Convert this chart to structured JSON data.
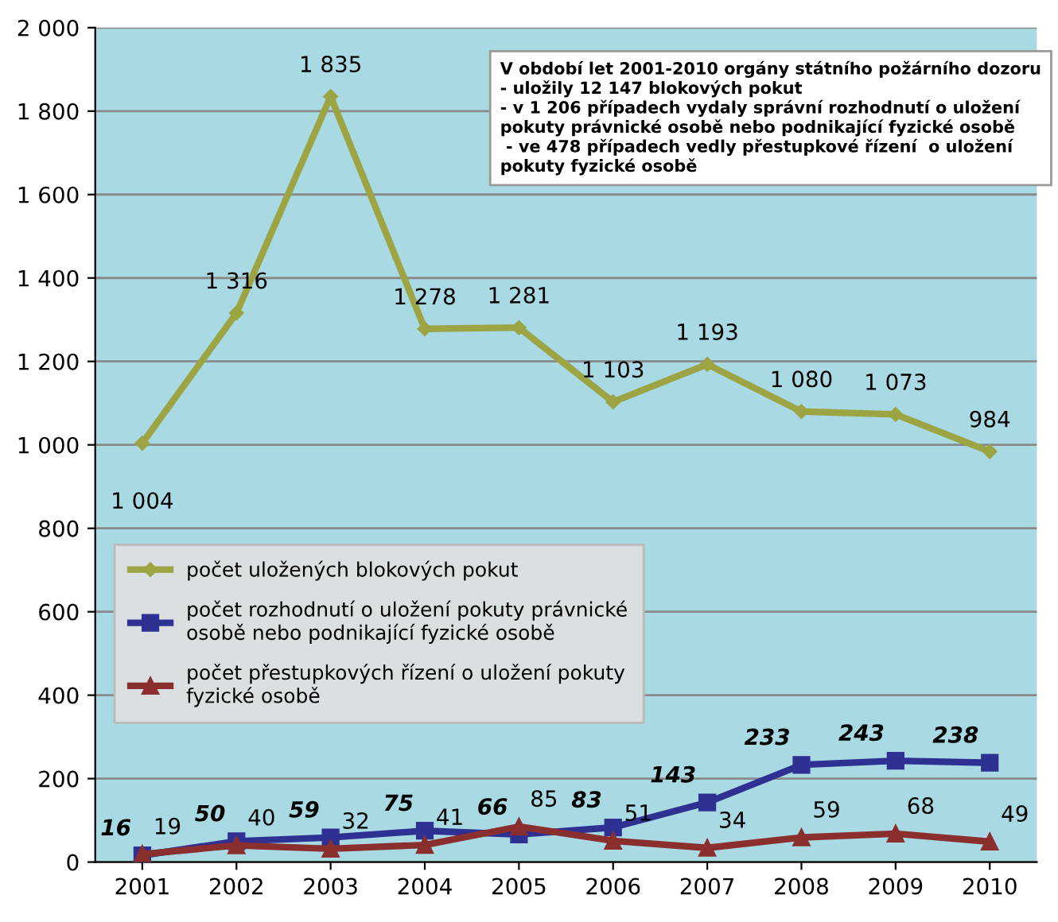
{
  "chart_data": {
    "type": "line",
    "categories": [
      "2001",
      "2002",
      "2003",
      "2004",
      "2005",
      "2006",
      "2007",
      "2008",
      "2009",
      "2010"
    ],
    "series": [
      {
        "name": "počet uložených blokových pokut",
        "color": "#9ca443",
        "marker": "diamond",
        "values": [
          1004,
          1316,
          1835,
          1278,
          1281,
          1103,
          1193,
          1080,
          1073,
          984
        ],
        "value_labels": [
          "1 004",
          "1 316",
          "1 835",
          "1 278",
          "1 281",
          "1 103",
          "1 193",
          "1 080",
          "1 073",
          "984"
        ]
      },
      {
        "name": "počet rozhodnutí o uložení pokuty právnické osobě nebo podnikající fyzické osobě",
        "color": "#2e3192",
        "marker": "square",
        "values": [
          16,
          50,
          59,
          75,
          66,
          83,
          143,
          233,
          243,
          238
        ],
        "data_labels": true
      },
      {
        "name": "počet přestupkových řízení o uložení pokuty fyzické osobě",
        "color": "#8b2e2e",
        "marker": "triangle",
        "values": [
          19,
          40,
          32,
          41,
          85,
          51,
          34,
          59,
          68,
          49
        ],
        "data_labels": true
      }
    ],
    "ylim": [
      0,
      2000
    ],
    "yticks": [
      0,
      200,
      400,
      600,
      800,
      {
        "value": 1000,
        "label": "1 000"
      },
      {
        "value": 1200,
        "label": "1 200"
      },
      {
        "value": 1400,
        "label": "1 400"
      },
      {
        "value": 1600,
        "label": "1 600"
      },
      {
        "value": 1800,
        "label": "1 800"
      },
      {
        "value": 2000,
        "label": "2 000"
      }
    ],
    "grid": "y",
    "legend": "left",
    "annotations": [
      "V období let 2001-2010 orgány státního požárního dozoru\n- uložily 12 147 blokových pokut\n- v 1 206 případech vydaly správní rozhodnutí o uložení\npokuty právnické osobě nebo podnikající fyzické osobě\n - ve 478 případech vedly přestupkové řízení  o uložení\npokuty fyzické osobě"
    ]
  }
}
